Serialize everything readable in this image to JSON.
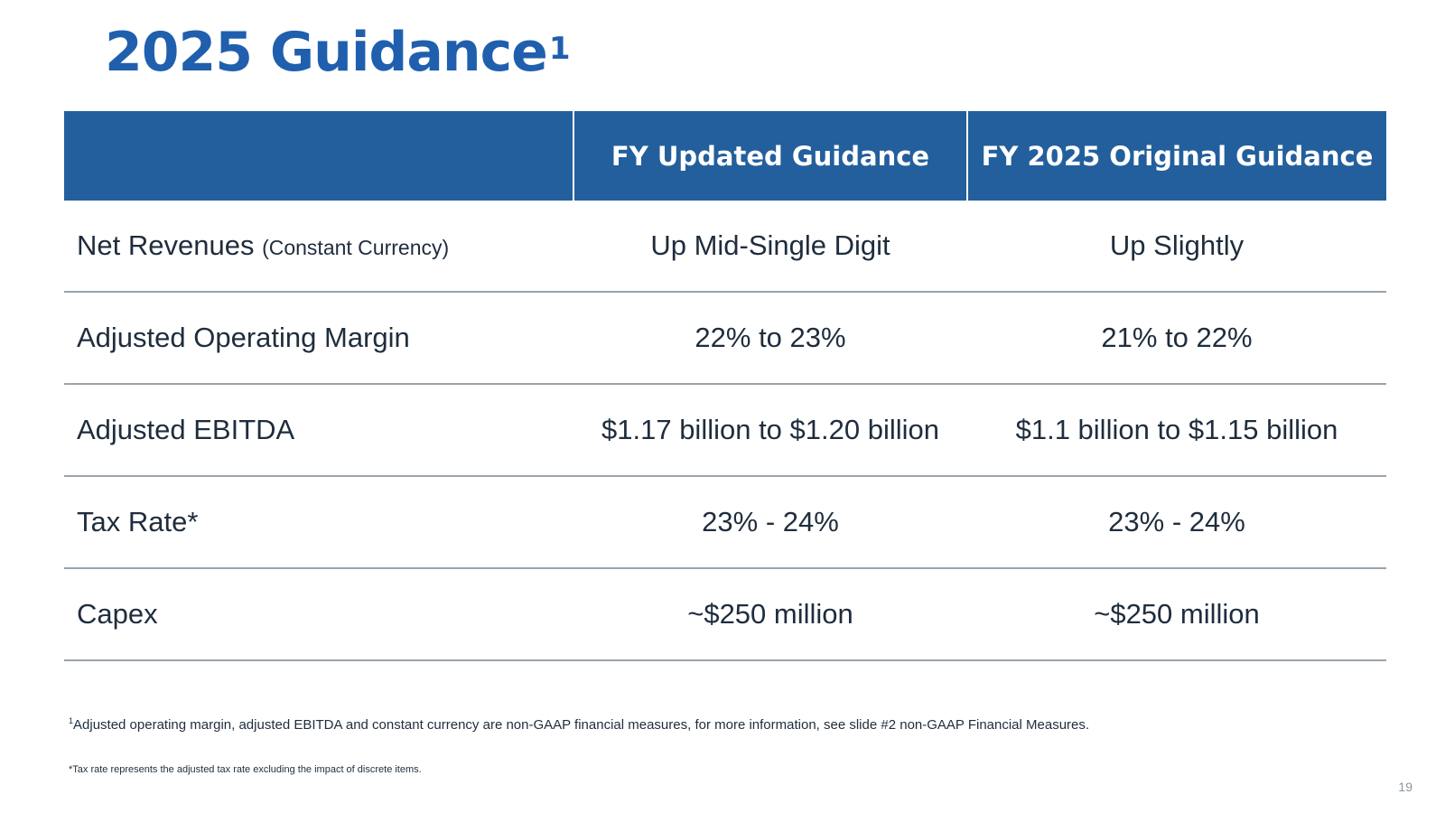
{
  "slide": {
    "title": "2025 Guidance",
    "title_superscript": "1",
    "page_number": "19"
  },
  "table": {
    "headers": [
      "",
      "FY Updated Guidance",
      "FY 2025 Original Guidance"
    ],
    "rows": [
      {
        "metric": "Net Revenues",
        "metric_note": "(Constant Currency)",
        "updated": "Up Mid-Single Digit",
        "original": "Up Slightly"
      },
      {
        "metric": "Adjusted Operating Margin",
        "updated": "22% to 23%",
        "original": "21% to 22%"
      },
      {
        "metric": "Adjusted EBITDA",
        "updated": "$1.17 billion to $1.20 billion",
        "original": "$1.1 billion to $1.15 billion"
      },
      {
        "metric": "Tax Rate*",
        "updated": "23% - 24%",
        "original": "23% - 24%"
      },
      {
        "metric": "Capex",
        "updated": "~$250 million",
        "original": "~$250 million"
      }
    ]
  },
  "footnotes": {
    "note1_marker": "1",
    "note1": "Adjusted operating margin, adjusted EBITDA and constant currency are non-GAAP financial measures, for more information, see slide #2 non-GAAP Financial Measures.",
    "note2": "*Tax rate represents the adjusted tax rate excluding the impact of discrete items."
  },
  "colors": {
    "title": "#1f5fae",
    "header_bg": "#235f9c",
    "row_divider": "#9aa3ab"
  }
}
